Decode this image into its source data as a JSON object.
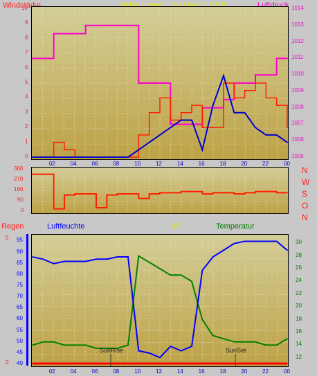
{
  "header": {
    "left_title": "Windstärke",
    "center_title": "24 hour graph day  Mar 09 2018",
    "right_title": "Luftdruck"
  },
  "wind_panel": {
    "left_ticks": [
      "10",
      "9",
      "8",
      "7",
      "6",
      "5",
      "4",
      "3",
      "2",
      "1",
      "0"
    ],
    "right_ticks": [
      "1014",
      "1013",
      "1012",
      "1011",
      "1010",
      "1009",
      "1008",
      "1007",
      "1006",
      "1005"
    ],
    "x_ticks": [
      "02",
      "04",
      "06",
      "08",
      "10",
      "12",
      "14",
      "16",
      "18",
      "20",
      "22",
      "00"
    ]
  },
  "direction_panel": {
    "left_ticks": [
      "360",
      "270",
      "180",
      "90",
      "0"
    ],
    "right_labels": [
      "N",
      "W",
      "S",
      "O",
      "N"
    ]
  },
  "bottom_header": {
    "rain": "Regen",
    "humidity": "Luftfeuchte",
    "uv": "UV",
    "temperature": "Temperatur"
  },
  "bottom_panel": {
    "humidity_ticks": [
      "95",
      "90",
      "85",
      "80",
      "75",
      "70",
      "65",
      "60",
      "55",
      "50",
      "45",
      "40"
    ],
    "rain_ticks": [
      "5",
      "0"
    ],
    "temp_ticks": [
      "30",
      "28",
      "26",
      "24",
      "22",
      "20",
      "18",
      "16",
      "14",
      "12"
    ],
    "x_ticks": [
      "02",
      "04",
      "06",
      "08",
      "10",
      "12",
      "14",
      "16",
      "18",
      "20",
      "22",
      "00"
    ],
    "sunrise": "SunRise",
    "sunset": "SunSet"
  },
  "colors": {
    "wind": "#ff2000",
    "gust": "#0000cc",
    "pressure": "#ff00cc",
    "direction": "#ff2000",
    "humidity": "#0000ff",
    "temperature": "#008000",
    "rain": "#ff0000",
    "uv": "#dddd00"
  },
  "chart_data": [
    {
      "type": "line",
      "x": [
        "00",
        "01",
        "02",
        "03",
        "04",
        "05",
        "06",
        "07",
        "08",
        "09",
        "10",
        "11",
        "12",
        "13",
        "14",
        "15",
        "16",
        "17",
        "18",
        "19",
        "20",
        "21",
        "22",
        "23",
        "00"
      ],
      "series": [
        {
          "values": [
            0,
            0,
            1,
            0.5,
            0,
            0,
            0,
            0,
            0,
            0,
            1.5,
            3,
            4,
            2.5,
            3,
            3.5,
            2,
            2,
            5,
            4,
            4.5,
            5,
            4,
            3.5,
            2
          ]
        },
        {
          "values": [
            0,
            0,
            0,
            0,
            0,
            0,
            0,
            0,
            0,
            0,
            0.5,
            1,
            1.5,
            2,
            2.5,
            2.5,
            0.5,
            3.5,
            5.5,
            3,
            3,
            2,
            1.5,
            1.5,
            1
          ]
        },
        {
          "values": [
            1011,
            1011,
            1012.5,
            1012.5,
            1012.5,
            1013,
            1013,
            1013,
            1013,
            1013,
            1009.5,
            1009.5,
            1009.5,
            1007,
            1007,
            1007,
            1008,
            1008,
            1008.5,
            1009.5,
            1009.5,
            1010,
            1010,
            1011,
            1011
          ]
        }
      ],
      "ylim": [
        0,
        10
      ],
      "y2lim": [
        1005,
        1014
      ]
    },
    {
      "type": "line",
      "x": [
        "00",
        "01",
        "02",
        "03",
        "04",
        "05",
        "06",
        "07",
        "08",
        "09",
        "10",
        "11",
        "12",
        "13",
        "14",
        "15",
        "16",
        "17",
        "18",
        "19",
        "20",
        "21",
        "22",
        "23",
        "00"
      ],
      "series": [
        {
          "values": [
            320,
            320,
            20,
            140,
            150,
            150,
            30,
            140,
            150,
            150,
            110,
            150,
            160,
            160,
            170,
            170,
            150,
            160,
            160,
            150,
            160,
            170,
            170,
            160,
            160
          ]
        }
      ],
      "ylim": [
        0,
        360
      ]
    },
    {
      "type": "line",
      "x": [
        "00",
        "01",
        "02",
        "03",
        "04",
        "05",
        "06",
        "07",
        "08",
        "09",
        "10",
        "11",
        "12",
        "13",
        "14",
        "15",
        "16",
        "17",
        "18",
        "19",
        "20",
        "21",
        "22",
        "23",
        "00"
      ],
      "series": [
        {
          "values": [
            88,
            87,
            85,
            86,
            86,
            86,
            87,
            87,
            88,
            88,
            46,
            45,
            43,
            48,
            46,
            48,
            82,
            88,
            91,
            94,
            95,
            95,
            95,
            95,
            91
          ]
        },
        {
          "values": [
            14,
            14.5,
            14.5,
            14,
            14,
            14,
            13.5,
            13.5,
            13.5,
            14,
            28,
            27,
            26,
            25,
            25,
            24,
            18,
            15.5,
            15,
            14.5,
            14.5,
            14.5,
            14,
            14,
            15
          ]
        },
        {
          "values": [
            0,
            0,
            0,
            0,
            0,
            0,
            0,
            0,
            0,
            0,
            0,
            0,
            0,
            0,
            0,
            0,
            0,
            0,
            0,
            0,
            0,
            0,
            0,
            0,
            0
          ]
        }
      ],
      "y_humidity_lim": [
        40,
        97
      ],
      "y_temp_lim": [
        11,
        31
      ],
      "y_rain_lim": [
        0,
        5
      ]
    }
  ]
}
